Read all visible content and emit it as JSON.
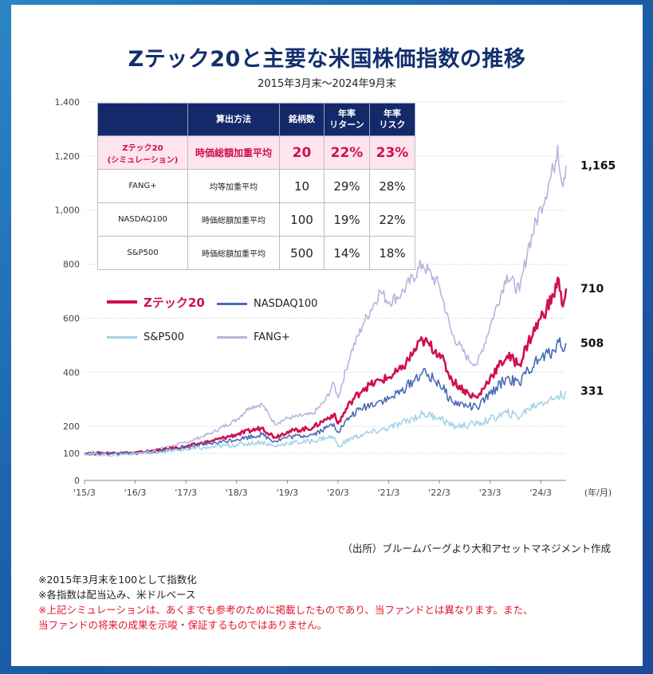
{
  "title": "Zテック20と主要な米国株価指数の推移",
  "subtitle": "2015年3月末～2024年9月末",
  "table": {
    "headers": [
      "",
      "算出方法",
      "銘柄数",
      "年率\nリターン",
      "年率\nリスク"
    ],
    "rows": [
      {
        "name": "Zテック20\n(シミュレーション)",
        "method": "時価総額加重平均",
        "count": "20",
        "return": "22%",
        "risk": "23%",
        "highlight": true
      },
      {
        "name": "FANG+",
        "method": "均等加重平均",
        "count": "10",
        "return": "29%",
        "risk": "28%",
        "highlight": false
      },
      {
        "name": "NASDAQ100",
        "method": "時価総額加重平均",
        "count": "100",
        "return": "19%",
        "risk": "22%",
        "highlight": false
      },
      {
        "name": "S&P500",
        "method": "時価総額加重平均",
        "count": "500",
        "return": "14%",
        "risk": "18%",
        "highlight": false
      }
    ]
  },
  "chart_data": {
    "type": "line",
    "x_unit_label": "(年/月)",
    "x_ticks": [
      "'15/3",
      "'16/3",
      "'17/3",
      "'18/3",
      "'19/3",
      "'20/3",
      "'21/3",
      "'22/3",
      "'23/3",
      "'24/3"
    ],
    "y_ticks": [
      "0",
      "100",
      "200",
      "400",
      "600",
      "800",
      "1,000",
      "1,200",
      "1,400"
    ],
    "ylim": [
      0,
      1400
    ],
    "x_range": [
      "2015-03",
      "2024-09"
    ],
    "grid": true,
    "series": [
      {
        "name": "FANG+",
        "color": "#b3b6dd",
        "end_label": "1,165",
        "points": [
          [
            "2015-03",
            100
          ],
          [
            "2015-09",
            102
          ],
          [
            "2016-03",
            98
          ],
          [
            "2016-09",
            118
          ],
          [
            "2017-03",
            140
          ],
          [
            "2017-09",
            175
          ],
          [
            "2018-03",
            225
          ],
          [
            "2018-06",
            270
          ],
          [
            "2018-09",
            282
          ],
          [
            "2018-12",
            210
          ],
          [
            "2019-03",
            230
          ],
          [
            "2019-09",
            245
          ],
          [
            "2019-12",
            295
          ],
          [
            "2020-02",
            360
          ],
          [
            "2020-03",
            305
          ],
          [
            "2020-06",
            470
          ],
          [
            "2020-09",
            580
          ],
          [
            "2021-01",
            700
          ],
          [
            "2021-03",
            660
          ],
          [
            "2021-06",
            690
          ],
          [
            "2021-11",
            800
          ],
          [
            "2022-03",
            720
          ],
          [
            "2022-06",
            540
          ],
          [
            "2022-10",
            445
          ],
          [
            "2022-12",
            430
          ],
          [
            "2023-03",
            570
          ],
          [
            "2023-07",
            760
          ],
          [
            "2023-10",
            700
          ],
          [
            "2023-12",
            860
          ],
          [
            "2024-03",
            1010
          ],
          [
            "2024-06",
            1150
          ],
          [
            "2024-07",
            1240
          ],
          [
            "2024-08",
            1100
          ],
          [
            "2024-09",
            1165
          ]
        ]
      },
      {
        "name": "Zテック20",
        "color": "#d0104c",
        "end_label": "710",
        "points": [
          [
            "2015-03",
            100
          ],
          [
            "2015-09",
            101
          ],
          [
            "2016-03",
            102
          ],
          [
            "2016-09",
            112
          ],
          [
            "2017-03",
            125
          ],
          [
            "2017-09",
            145
          ],
          [
            "2018-03",
            170
          ],
          [
            "2018-09",
            195
          ],
          [
            "2018-12",
            160
          ],
          [
            "2019-03",
            180
          ],
          [
            "2019-09",
            195
          ],
          [
            "2019-12",
            225
          ],
          [
            "2020-02",
            245
          ],
          [
            "2020-03",
            210
          ],
          [
            "2020-06",
            290
          ],
          [
            "2020-09",
            340
          ],
          [
            "2021-01",
            370
          ],
          [
            "2021-03",
            380
          ],
          [
            "2021-06",
            410
          ],
          [
            "2021-11",
            520
          ],
          [
            "2022-03",
            470
          ],
          [
            "2022-06",
            370
          ],
          [
            "2022-10",
            320
          ],
          [
            "2022-12",
            305
          ],
          [
            "2023-03",
            380
          ],
          [
            "2023-07",
            460
          ],
          [
            "2023-10",
            430
          ],
          [
            "2023-12",
            510
          ],
          [
            "2024-03",
            600
          ],
          [
            "2024-06",
            680
          ],
          [
            "2024-07",
            750
          ],
          [
            "2024-08",
            650
          ],
          [
            "2024-09",
            710
          ]
        ]
      },
      {
        "name": "NASDAQ100",
        "color": "#4a6bb8",
        "end_label": "508",
        "points": [
          [
            "2015-03",
            100
          ],
          [
            "2015-09",
            100
          ],
          [
            "2016-03",
            100
          ],
          [
            "2016-09",
            110
          ],
          [
            "2017-03",
            122
          ],
          [
            "2017-09",
            137
          ],
          [
            "2018-03",
            152
          ],
          [
            "2018-09",
            170
          ],
          [
            "2018-12",
            145
          ],
          [
            "2019-03",
            160
          ],
          [
            "2019-09",
            170
          ],
          [
            "2019-12",
            192
          ],
          [
            "2020-02",
            210
          ],
          [
            "2020-03",
            180
          ],
          [
            "2020-06",
            238
          ],
          [
            "2020-09",
            270
          ],
          [
            "2021-01",
            295
          ],
          [
            "2021-03",
            300
          ],
          [
            "2021-06",
            330
          ],
          [
            "2021-11",
            400
          ],
          [
            "2022-03",
            360
          ],
          [
            "2022-06",
            290
          ],
          [
            "2022-10",
            275
          ],
          [
            "2022-12",
            268
          ],
          [
            "2023-03",
            320
          ],
          [
            "2023-07",
            380
          ],
          [
            "2023-10",
            355
          ],
          [
            "2023-12",
            410
          ],
          [
            "2024-03",
            450
          ],
          [
            "2024-06",
            480
          ],
          [
            "2024-07",
            520
          ],
          [
            "2024-08",
            490
          ],
          [
            "2024-09",
            508
          ]
        ]
      },
      {
        "name": "S&P500",
        "color": "#a6d3ea",
        "end_label": "331",
        "points": [
          [
            "2015-03",
            100
          ],
          [
            "2015-09",
            93
          ],
          [
            "2016-03",
            100
          ],
          [
            "2016-09",
            106
          ],
          [
            "2017-03",
            114
          ],
          [
            "2017-09",
            122
          ],
          [
            "2018-03",
            132
          ],
          [
            "2018-09",
            142
          ],
          [
            "2018-12",
            125
          ],
          [
            "2019-03",
            138
          ],
          [
            "2019-09",
            145
          ],
          [
            "2019-12",
            158
          ],
          [
            "2020-02",
            160
          ],
          [
            "2020-03",
            125
          ],
          [
            "2020-06",
            155
          ],
          [
            "2020-09",
            170
          ],
          [
            "2021-01",
            185
          ],
          [
            "2021-03",
            195
          ],
          [
            "2021-06",
            210
          ],
          [
            "2021-11",
            245
          ],
          [
            "2022-03",
            235
          ],
          [
            "2022-06",
            200
          ],
          [
            "2022-10",
            205
          ],
          [
            "2022-12",
            210
          ],
          [
            "2023-03",
            225
          ],
          [
            "2023-07",
            250
          ],
          [
            "2023-10",
            235
          ],
          [
            "2023-12",
            265
          ],
          [
            "2024-03",
            290
          ],
          [
            "2024-06",
            300
          ],
          [
            "2024-07",
            315
          ],
          [
            "2024-08",
            310
          ],
          [
            "2024-09",
            331
          ]
        ]
      }
    ]
  },
  "legend": [
    {
      "name": "Zテック20",
      "color": "#d0104c"
    },
    {
      "name": "NASDAQ100",
      "color": "#4a6bb8"
    },
    {
      "name": "S&P500",
      "color": "#a6d3ea"
    },
    {
      "name": "FANG+",
      "color": "#b3b6dd"
    }
  ],
  "source": "（出所）ブルームバーグより大和アセットマネジメント作成",
  "notes": [
    "※2015年3月末を100として指数化",
    "※各指数は配当込み、米ドルベース",
    "※上記シミュレーションは、あくまでも参考のために掲載したものであり、当ファンドとは異なります。また、",
    "当ファンドの将来の成果を示唆・保証するものではありません。"
  ]
}
